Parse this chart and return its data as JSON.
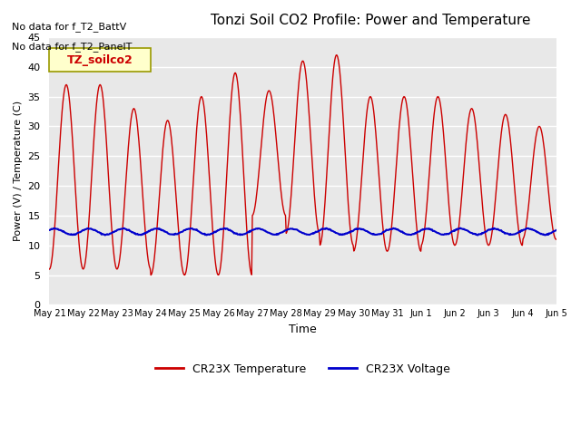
{
  "title": "Tonzi Soil CO2 Profile: Power and Temperature",
  "ylabel": "Power (V) / Temperature (C)",
  "xlabel": "Time",
  "ylim": [
    0,
    45
  ],
  "yticks": [
    0,
    5,
    10,
    15,
    20,
    25,
    30,
    35,
    40,
    45
  ],
  "text_no_data_1": "No data for f_T2_BattV",
  "text_no_data_2": "No data for f_T2_PanelT",
  "legend_label": "TZ_soilco2",
  "xtick_labels": [
    "May 21",
    "May 22",
    "May 23",
    "May 24",
    "May 25",
    "May 26",
    "May 27",
    "May 28",
    "May 29",
    "May 30",
    "May 31",
    "Jun 1",
    "Jun 2",
    "Jun 3",
    "Jun 4",
    "Jun 5"
  ],
  "temp_color": "#cc0000",
  "volt_color": "#0000cc",
  "bg_color": "#e8e8e8",
  "grid_color": "#ffffff",
  "legend_box_color": "#ffffcc",
  "legend_box_edge": "#999900"
}
